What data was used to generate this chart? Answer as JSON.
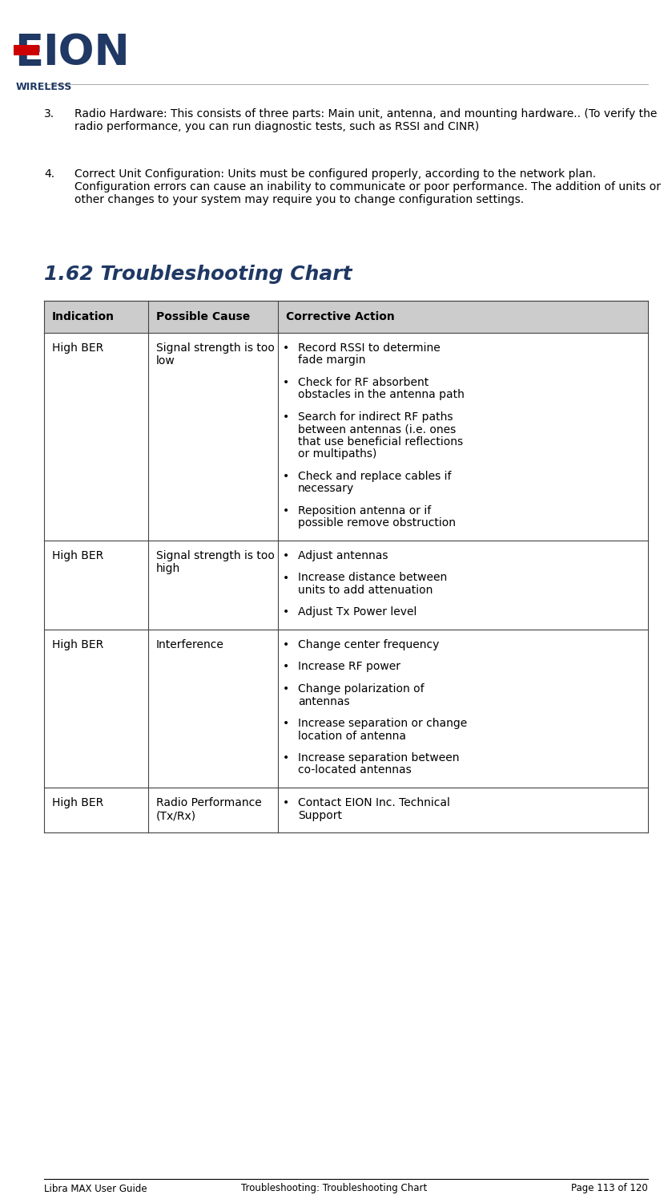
{
  "page_width": 8.34,
  "page_height": 15.0,
  "dpi": 100,
  "bg_color": "#ffffff",
  "section_title": "1.62 Troubleshooting Chart",
  "section_title_color": "#1F3864",
  "section_font_size": 18,
  "table_header_bg": "#cccccc",
  "table_border_color": "#444444",
  "col_headers": [
    "Indication",
    "Possible Cause",
    "Corrective Action"
  ],
  "body_font_size": 10,
  "header_font_size": 10,
  "item3_num": "3.",
  "item3_text": "Radio Hardware: This consists of three parts: Main unit, antenna, and mounting hardware.. (To verify the radio performance, you can run diagnostic tests, such as RSSI and CINR)",
  "item4_num": "4.",
  "item4_text": "Correct Unit Configuration: Units must be configured properly, according to the network plan. Configuration errors can cause an inability to communicate or poor performance. The addition of units or other changes to your system may require you to change configuration settings.",
  "table_rows": [
    {
      "indication": "High BER",
      "cause": "Signal strength is too\nlow",
      "actions": [
        "Record RSSI to determine\nfade margin",
        "Check for RF absorbent\nobstacles in the antenna path",
        "Search for indirect RF paths\nbetween antennas (i.e. ones\nthat use beneficial reflections\nor multipaths)",
        "Check and replace cables if\nnecessary",
        "Reposition antenna or if\npossible remove obstruction"
      ]
    },
    {
      "indication": "High BER",
      "cause": "Signal strength is too\nhigh",
      "actions": [
        "Adjust antennas",
        "Increase distance between\nunits to add attenuation",
        "Adjust Tx Power level"
      ]
    },
    {
      "indication": "High BER",
      "cause": "Interference",
      "actions": [
        "Change center frequency",
        "Increase RF power",
        "Change polarization of\nantennas",
        "Increase separation or change\nlocation of antenna",
        "Increase separation between\nco-located antennas"
      ]
    },
    {
      "indication": "High BER",
      "cause": "Radio Performance\n(Tx/Rx)",
      "actions": [
        "Contact EION Inc. Technical\nSupport"
      ]
    }
  ],
  "footer_left": "Libra MAX User Guide",
  "footer_center": "Troubleshooting: Troubleshooting Chart",
  "footer_right": "Page 113 of 120"
}
